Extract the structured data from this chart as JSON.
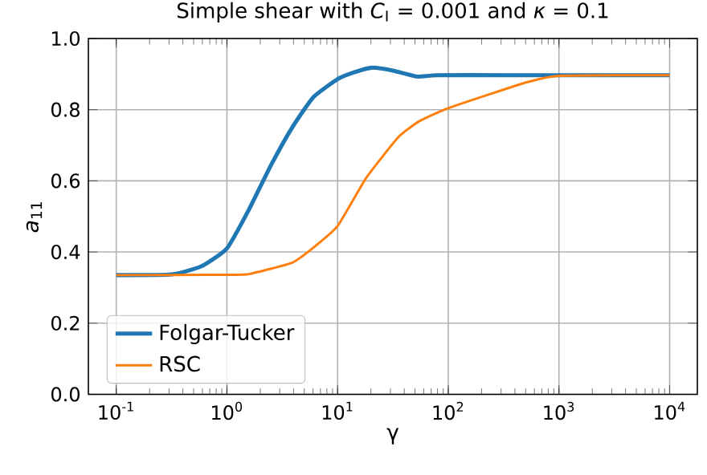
{
  "chart_data": {
    "type": "line",
    "title": "Simple shear with *C*$_{I}$ = 0.001 and *κ* = 0.1",
    "xlabel": "γ",
    "ylabel": "*a*$_{11}$",
    "log": "x",
    "xlim": [
      0.056,
      17800
    ],
    "ylim": [
      0,
      1
    ],
    "xticks": [
      {
        "value": 0.1,
        "label": "10$^{-1}$"
      },
      {
        "value": 1,
        "label": "10$^{0}$"
      },
      {
        "value": 10,
        "label": "10$^{1}$"
      },
      {
        "value": 100,
        "label": "10$^{2}$"
      },
      {
        "value": 1000,
        "label": "10$^{3}$"
      },
      {
        "value": 10000,
        "label": "10$^{4}$"
      }
    ],
    "yticks": [
      {
        "value": 0,
        "label": "0.0"
      },
      {
        "value": 0.2,
        "label": "0.2"
      },
      {
        "value": 0.4,
        "label": "0.4"
      },
      {
        "value": 0.6,
        "label": "0.6"
      },
      {
        "value": 0.8,
        "label": "0.8"
      },
      {
        "value": 1,
        "label": "1.0"
      }
    ],
    "grid": true,
    "legend": "bottom left",
    "series": [
      {
        "name": "Folgar-Tucker",
        "color": "#1f77b4",
        "x": [
          0.1,
          0.316,
          0.589,
          1,
          1.585,
          2.512,
          3.89,
          6.03,
          10,
          14.1,
          20.4,
          31.6,
          52.5,
          79.4,
          316,
          1000,
          10000
        ],
        "values": [
          0.335,
          0.337,
          0.36,
          0.41,
          0.52,
          0.645,
          0.75,
          0.835,
          0.886,
          0.905,
          0.918,
          0.91,
          0.893,
          0.897,
          0.897,
          0.897,
          0.897
        ]
      },
      {
        "name": "RSC",
        "color": "#ff7f0e",
        "x": [
          0.1,
          1,
          1.585,
          3.89,
          6.03,
          10,
          18.2,
          35.5,
          55,
          95.5,
          240,
          513,
          1000,
          10000
        ],
        "values": [
          0.335,
          0.336,
          0.338,
          0.37,
          0.412,
          0.473,
          0.609,
          0.723,
          0.768,
          0.802,
          0.844,
          0.877,
          0.895,
          0.897
        ]
      }
    ]
  }
}
